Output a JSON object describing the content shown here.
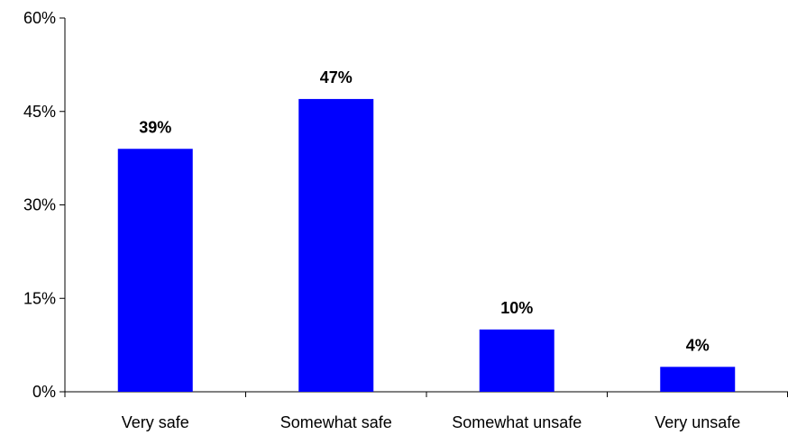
{
  "chart_data": {
    "type": "bar",
    "title": "",
    "xlabel": "",
    "ylabel": "",
    "categories": [
      "Very safe",
      "Somewhat safe",
      "Somewhat unsafe",
      "Very unsafe"
    ],
    "values": [
      39,
      47,
      10,
      4
    ],
    "data_labels": [
      "39%",
      "47%",
      "10%",
      "4%"
    ],
    "ylim": [
      0,
      60
    ],
    "yticks": [
      0,
      15,
      30,
      45,
      60
    ],
    "ytick_labels": [
      "0%",
      "15%",
      "30%",
      "45%",
      "60%"
    ],
    "bar_color": "#0000FF",
    "grid": false,
    "legend": "none"
  }
}
